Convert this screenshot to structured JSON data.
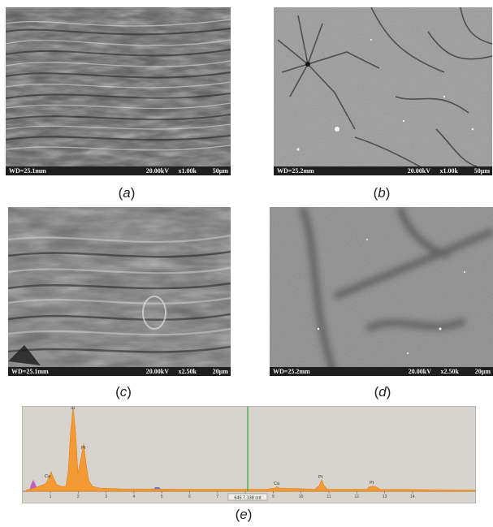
{
  "panels": [
    {
      "id": "a",
      "wd": "WD=25.1mm",
      "kv": "20.00kV",
      "mag": "x1.00k",
      "scale": "50μm",
      "caption": "a"
    },
    {
      "id": "b",
      "wd": "WD=25.2mm",
      "kv": "20.00kV",
      "mag": "x1.00k",
      "scale": "50μm",
      "caption": "b"
    },
    {
      "id": "c",
      "wd": "WD=25.1mm",
      "kv": "20.00kV",
      "mag": "x2.50k",
      "scale": "20μm",
      "caption": "c"
    },
    {
      "id": "d",
      "wd": "WD=25.2mm",
      "kv": "20.00kV",
      "mag": "x2.50k",
      "scale": "20μm",
      "caption": "d"
    }
  ],
  "spectrum": {
    "caption": "e",
    "peak_labels": [
      "Si",
      "Pt",
      "Ca",
      "Ca",
      "Pt",
      "Pt"
    ],
    "x_ticks": [
      "1",
      "2",
      "3",
      "4",
      "5",
      "6",
      "7",
      "8",
      "9",
      "10",
      "11",
      "12",
      "13",
      "14"
    ],
    "cursor_readout": "645 7.138 cnt",
    "colors": {
      "fill": "#f39a34",
      "cursor": "#3aa23a",
      "background": "#d7d4cd",
      "extra_traces": [
        "#c060c0",
        "#7070d0"
      ]
    }
  }
}
